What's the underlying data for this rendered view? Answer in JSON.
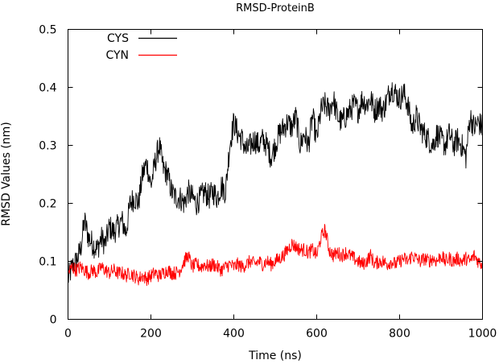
{
  "chart_data": {
    "type": "line",
    "title": "RMSD-ProteinB",
    "xlabel": "Time (ns)",
    "ylabel": "RMSD Values (nm)",
    "xlim": [
      0,
      1000
    ],
    "ylim": [
      0,
      0.5
    ],
    "x_ticks": [
      "0",
      "200",
      "400",
      "600",
      "800",
      "1000"
    ],
    "y_ticks": [
      "0",
      "0.1",
      "0.2",
      "0.3",
      "0.4",
      "0.5"
    ],
    "grid": false,
    "legend_position": "top-left",
    "series": [
      {
        "name": "CYS",
        "color": "#000000",
        "x": [
          0,
          10,
          20,
          30,
          40,
          50,
          60,
          70,
          80,
          90,
          100,
          110,
          120,
          130,
          140,
          150,
          160,
          170,
          180,
          190,
          200,
          210,
          220,
          230,
          240,
          250,
          260,
          270,
          280,
          290,
          300,
          310,
          320,
          330,
          340,
          350,
          360,
          370,
          380,
          390,
          400,
          410,
          420,
          430,
          440,
          450,
          460,
          470,
          480,
          490,
          500,
          510,
          520,
          530,
          540,
          550,
          560,
          570,
          580,
          590,
          600,
          610,
          620,
          630,
          640,
          650,
          660,
          670,
          680,
          690,
          700,
          710,
          720,
          730,
          740,
          750,
          760,
          770,
          780,
          790,
          800,
          810,
          820,
          830,
          840,
          850,
          860,
          870,
          880,
          890,
          900,
          910,
          920,
          930,
          940,
          950,
          960,
          970,
          980,
          990,
          1000
        ],
        "y": [
          0.07,
          0.09,
          0.1,
          0.12,
          0.17,
          0.14,
          0.13,
          0.12,
          0.14,
          0.13,
          0.16,
          0.15,
          0.16,
          0.17,
          0.15,
          0.2,
          0.21,
          0.2,
          0.25,
          0.27,
          0.23,
          0.27,
          0.3,
          0.26,
          0.25,
          0.22,
          0.21,
          0.21,
          0.2,
          0.22,
          0.21,
          0.2,
          0.21,
          0.22,
          0.21,
          0.22,
          0.21,
          0.23,
          0.22,
          0.3,
          0.34,
          0.32,
          0.31,
          0.29,
          0.3,
          0.31,
          0.3,
          0.31,
          0.3,
          0.28,
          0.3,
          0.32,
          0.33,
          0.34,
          0.33,
          0.35,
          0.3,
          0.32,
          0.3,
          0.35,
          0.31,
          0.36,
          0.37,
          0.36,
          0.38,
          0.35,
          0.34,
          0.35,
          0.36,
          0.37,
          0.36,
          0.38,
          0.37,
          0.38,
          0.36,
          0.37,
          0.36,
          0.38,
          0.4,
          0.39,
          0.38,
          0.39,
          0.37,
          0.33,
          0.35,
          0.33,
          0.32,
          0.31,
          0.3,
          0.32,
          0.31,
          0.3,
          0.32,
          0.3,
          0.31,
          0.3,
          0.28,
          0.35,
          0.33,
          0.34,
          0.33
        ],
        "noise": 0.022
      },
      {
        "name": "CYN",
        "color": "#ff0000",
        "x": [
          0,
          10,
          20,
          30,
          40,
          50,
          60,
          70,
          80,
          90,
          100,
          110,
          120,
          130,
          140,
          150,
          160,
          170,
          180,
          190,
          200,
          210,
          220,
          230,
          240,
          250,
          260,
          270,
          280,
          290,
          300,
          310,
          320,
          330,
          340,
          350,
          360,
          370,
          380,
          390,
          400,
          410,
          420,
          430,
          440,
          450,
          460,
          470,
          480,
          490,
          500,
          510,
          520,
          530,
          540,
          550,
          560,
          570,
          580,
          590,
          600,
          610,
          620,
          630,
          640,
          650,
          660,
          670,
          680,
          690,
          700,
          710,
          720,
          730,
          740,
          750,
          760,
          770,
          780,
          790,
          800,
          810,
          820,
          830,
          840,
          850,
          860,
          870,
          880,
          890,
          900,
          910,
          920,
          930,
          940,
          950,
          960,
          970,
          980,
          990,
          1000
        ],
        "y": [
          0.08,
          0.09,
          0.085,
          0.09,
          0.085,
          0.08,
          0.085,
          0.08,
          0.09,
          0.085,
          0.08,
          0.085,
          0.08,
          0.08,
          0.075,
          0.08,
          0.075,
          0.07,
          0.075,
          0.07,
          0.075,
          0.08,
          0.075,
          0.08,
          0.085,
          0.08,
          0.08,
          0.085,
          0.1,
          0.11,
          0.09,
          0.095,
          0.09,
          0.095,
          0.09,
          0.095,
          0.09,
          0.085,
          0.09,
          0.095,
          0.09,
          0.095,
          0.09,
          0.095,
          0.1,
          0.095,
          0.1,
          0.095,
          0.1,
          0.095,
          0.1,
          0.105,
          0.11,
          0.12,
          0.13,
          0.125,
          0.12,
          0.12,
          0.115,
          0.12,
          0.11,
          0.14,
          0.155,
          0.12,
          0.11,
          0.115,
          0.11,
          0.115,
          0.11,
          0.105,
          0.1,
          0.095,
          0.1,
          0.11,
          0.095,
          0.1,
          0.1,
          0.095,
          0.1,
          0.095,
          0.1,
          0.105,
          0.1,
          0.11,
          0.105,
          0.1,
          0.105,
          0.1,
          0.105,
          0.1,
          0.11,
          0.1,
          0.105,
          0.1,
          0.105,
          0.1,
          0.105,
          0.1,
          0.11,
          0.1,
          0.095
        ],
        "noise": 0.012
      }
    ]
  }
}
